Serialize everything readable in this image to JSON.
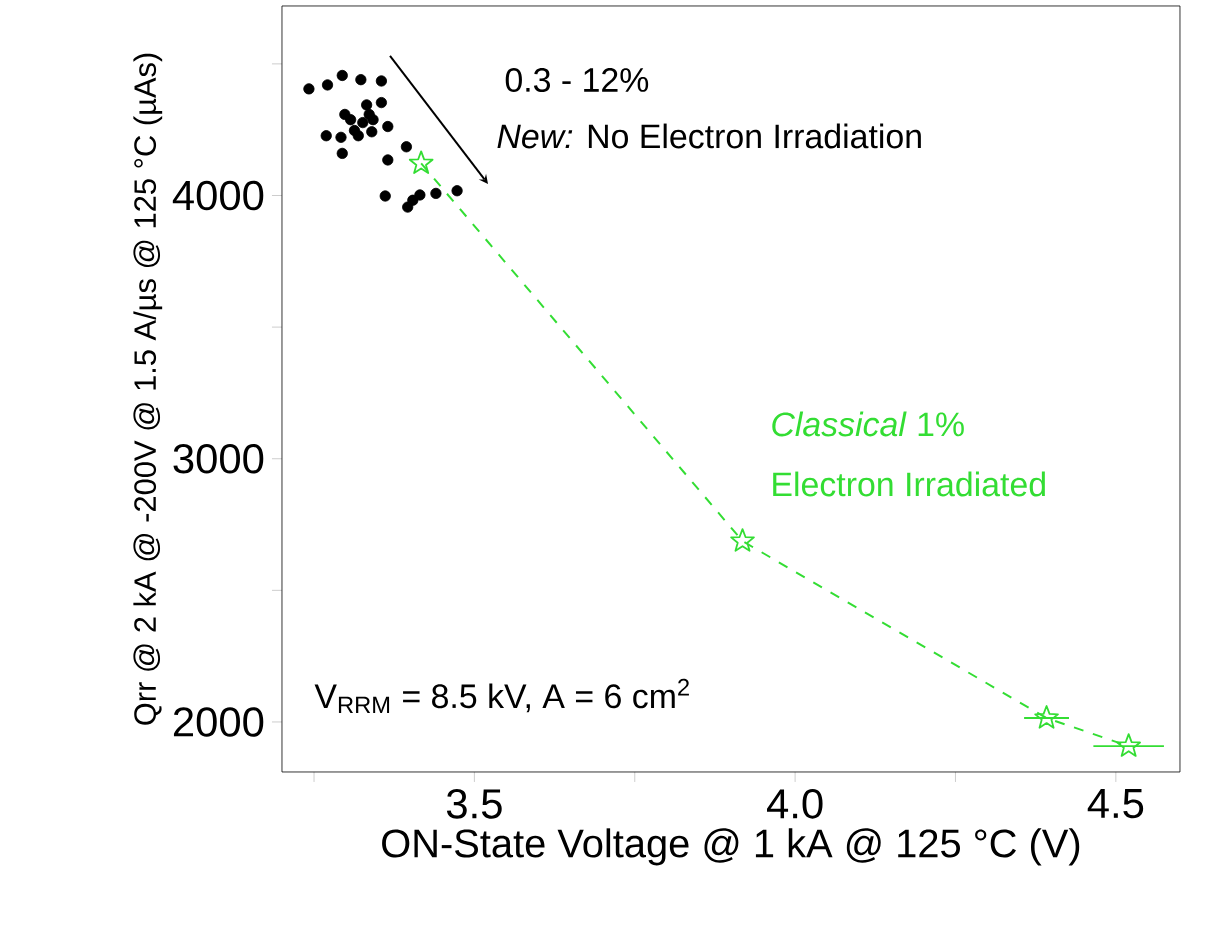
{
  "chart_data": {
    "type": "scatter",
    "xlabel": "ON-State Voltage @ 1 kA @ 125 °C  (V)",
    "ylabel": "Qrr @ 2 kA @ -200V @ 1.5 A/µs @ 125 °C (µAs)",
    "xlim": [
      3.2,
      4.6
    ],
    "ylim": [
      1810,
      4720
    ],
    "xticks": [
      {
        "value": 3.25,
        "label": null
      },
      3.5,
      {
        "value": 3.75,
        "label": null
      },
      {
        "value": 4.0,
        "label": "4.0"
      },
      {
        "value": 4.25,
        "label": null
      },
      4.5
    ],
    "yticks": [
      2000,
      {
        "value": 2500,
        "label": null
      },
      3000,
      {
        "value": 3500,
        "label": null
      },
      4000,
      {
        "value": 4500,
        "label": null
      }
    ],
    "series": [
      {
        "color": "#000000",
        "marker": "circle",
        "x": [
          3.242,
          3.271,
          3.294,
          3.323,
          3.355,
          3.355,
          3.332,
          3.298,
          3.336,
          3.307,
          3.326,
          3.342,
          3.365,
          3.313,
          3.292,
          3.269,
          3.34,
          3.319,
          3.294,
          3.394,
          3.365,
          3.361,
          3.396,
          3.415,
          3.44,
          3.473,
          3.404
        ],
        "values": [
          4405,
          4420,
          4456,
          4440,
          4435,
          4353,
          4344,
          4308,
          4308,
          4288,
          4277,
          4288,
          4262,
          4247,
          4221,
          4227,
          4242,
          4227,
          4160,
          4185,
          4135,
          3998,
          3956,
          4002,
          4008,
          4018,
          3982
        ]
      },
      {
        "type": "line",
        "color": "#33dd33",
        "marker": "star",
        "line_style": "dashed",
        "x": [
          3.417,
          3.918,
          4.392,
          4.52
        ],
        "values": [
          4122,
          2687,
          2015,
          1908
        ],
        "xerrors": [
          null,
          null,
          0.035,
          0.055
        ]
      }
    ],
    "annotations": [
      "0.3 - 12%",
      "*New:* No Electron Irradiation",
      "*Classical*   1%",
      "Electron Irradiated",
      "V$_{RRM}$ = 8.5 kV, A = 6 cm$^{2}$"
    ]
  }
}
